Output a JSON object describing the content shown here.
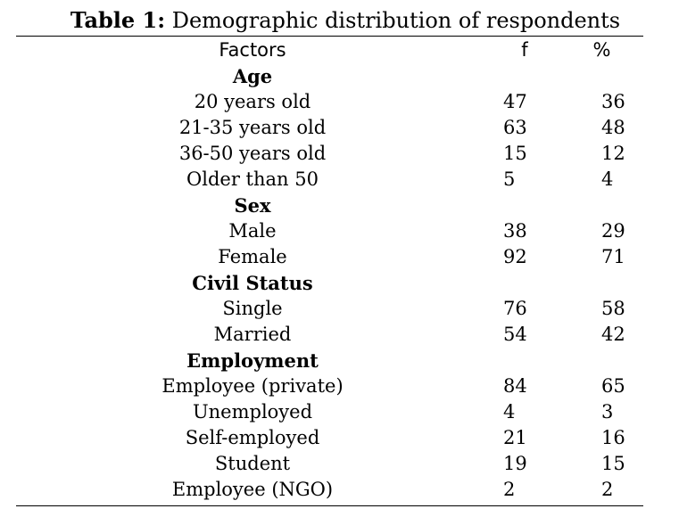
{
  "caption": {
    "label": "Table 1:",
    "text": " Demographic distribution of respondents"
  },
  "columns": {
    "factors": "Factors",
    "f": "f",
    "pct": "%"
  },
  "groups": [
    {
      "title": "Age",
      "rows": [
        {
          "factor": "20 years old",
          "f": "47",
          "pct": "36"
        },
        {
          "factor": "21-35 years old",
          "f": "63",
          "pct": "48"
        },
        {
          "factor": "36-50 years old",
          "f": "15",
          "pct": "12"
        },
        {
          "factor": "Older than 50",
          "f": "5",
          "pct": "4"
        }
      ]
    },
    {
      "title": "Sex",
      "rows": [
        {
          "factor": "Male",
          "f": "38",
          "pct": "29"
        },
        {
          "factor": "Female",
          "f": "92",
          "pct": "71"
        }
      ]
    },
    {
      "title": "Civil Status",
      "rows": [
        {
          "factor": "Single",
          "f": "76",
          "pct": "58"
        },
        {
          "factor": "Married",
          "f": "54",
          "pct": "42"
        }
      ]
    },
    {
      "title": "Employment",
      "rows": [
        {
          "factor": "Employee (private)",
          "f": "84",
          "pct": "65"
        },
        {
          "factor": "Unemployed",
          "f": "4",
          "pct": "3"
        },
        {
          "factor": "Self-employed",
          "f": "21",
          "pct": "16"
        },
        {
          "factor": "Student",
          "f": "19",
          "pct": "15"
        },
        {
          "factor": "Employee (NGO)",
          "f": "2",
          "pct": "2"
        }
      ]
    }
  ]
}
